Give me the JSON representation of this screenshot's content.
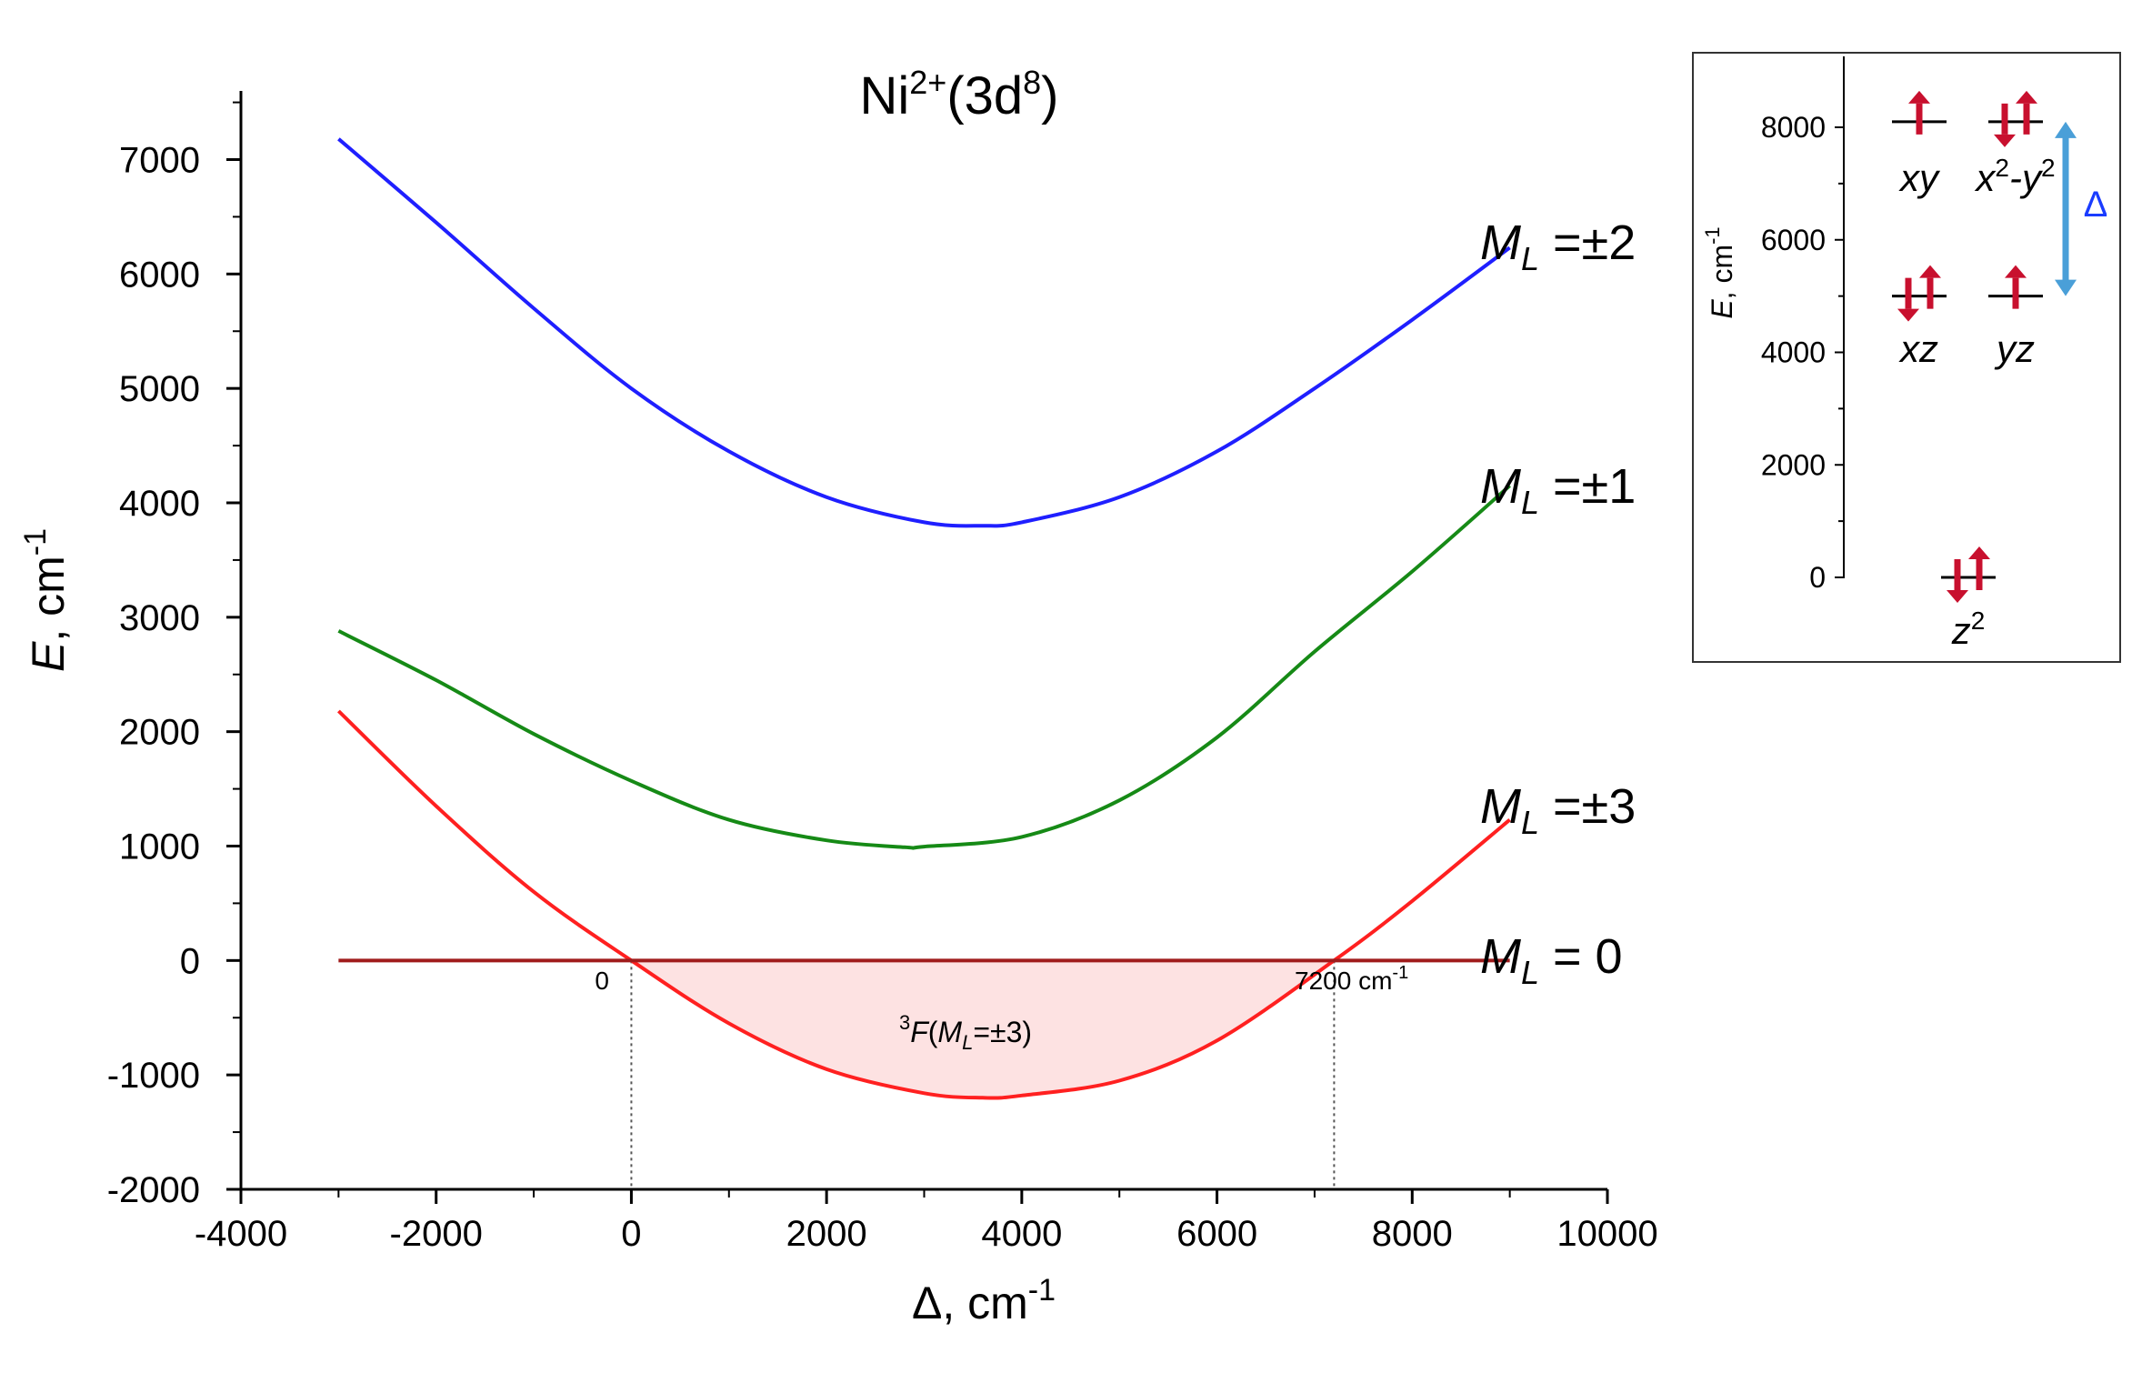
{
  "chart_data": {
    "type": "line",
    "title": "Ni2+(3d8)",
    "title_parts": {
      "base": "Ni",
      "charge": "2+",
      "config_open": "(3d",
      "config_power": "8",
      "config_close": ")"
    },
    "xlabel": "Δ, cm-1",
    "xlabel_parts": {
      "base": "Δ, cm",
      "power": "-1"
    },
    "ylabel": "E, cm-1",
    "ylabel_parts": {
      "italic": "E",
      "base": ", cm",
      "power": "-1"
    },
    "xlim": [
      -4000,
      10000
    ],
    "ylim": [
      -2000,
      7600
    ],
    "xticks": [
      -4000,
      -2000,
      0,
      2000,
      4000,
      6000,
      8000,
      10000
    ],
    "yticks": [
      -2000,
      -1000,
      0,
      1000,
      2000,
      3000,
      4000,
      5000,
      6000,
      7000
    ],
    "xtick_labels": [
      "-4000",
      "-2000",
      "0",
      "2000",
      "4000",
      "6000",
      "8000",
      "10000"
    ],
    "ytick_labels": [
      "-2000",
      "-1000",
      "0",
      "1000",
      "2000",
      "3000",
      "4000",
      "5000",
      "6000",
      "7000"
    ],
    "series": [
      {
        "name": "ML =±2",
        "label_sym": "M",
        "label_sub": "L",
        "label_rest": " =±2",
        "color": "#1f1fff",
        "x": [
          -3000,
          -2000,
          -1000,
          0,
          1000,
          2000,
          3000,
          3600,
          4000,
          5000,
          6000,
          7000,
          8000,
          9000
        ],
        "y": [
          7180,
          6450,
          5700,
          5000,
          4450,
          4050,
          3830,
          3800,
          3830,
          4050,
          4450,
          5000,
          5600,
          6230
        ]
      },
      {
        "name": "ML =±1",
        "label_sym": "M",
        "label_sub": "L",
        "label_rest": " =±1",
        "color": "#168a16",
        "x": [
          -3000,
          -2000,
          -1000,
          0,
          1000,
          2000,
          2800,
          3000,
          4000,
          5000,
          6000,
          7000,
          8000,
          9000
        ],
        "y": [
          2880,
          2450,
          1980,
          1570,
          1230,
          1050,
          990,
          995,
          1080,
          1400,
          1950,
          2700,
          3400,
          4150
        ]
      },
      {
        "name": "ML =±3",
        "label_sym": "M",
        "label_sub": "L",
        "label_rest": " =±3",
        "color": "#ff2020",
        "x": [
          -3000,
          -2000,
          -1000,
          0,
          1000,
          2000,
          3000,
          3600,
          4000,
          5000,
          6000,
          7200,
          8000,
          9000
        ],
        "y": [
          2180,
          1350,
          600,
          0,
          -550,
          -950,
          -1160,
          -1200,
          -1180,
          -1050,
          -700,
          0,
          520,
          1230
        ]
      },
      {
        "name": "ML = 0",
        "label_sym": "M",
        "label_sub": "L",
        "label_rest": " = 0",
        "color": "#a01c1c",
        "x": [
          -3000,
          9000
        ],
        "y": [
          0,
          0
        ]
      }
    ],
    "shaded_region": {
      "label_pre": "3",
      "label_sym": "F",
      "label_open": "(",
      "label_M": "M",
      "label_sub": "L",
      "label_rest": "=±3)",
      "x_from": 0,
      "x_to": 7200,
      "color": "#fde2e2"
    },
    "annotations": {
      "left_crossing": "0",
      "right_crossing": "7200 cm",
      "right_crossing_power": "-1"
    },
    "inset": {
      "ylabel_italic": "E",
      "ylabel_base": ", cm",
      "ylabel_power": "-1",
      "ylim": [
        0,
        9000
      ],
      "yticks": [
        0,
        2000,
        4000,
        6000,
        8000
      ],
      "ytick_labels": [
        "0",
        "2000",
        "4000",
        "6000",
        "8000"
      ],
      "orbitals": [
        {
          "name": "xy",
          "energy": 8100,
          "electrons": "up"
        },
        {
          "name": "x2-y2",
          "energy": 8100,
          "electrons": "pair"
        },
        {
          "name": "xz",
          "energy": 5000,
          "electrons": "pair"
        },
        {
          "name": "yz",
          "energy": 5000,
          "electrons": "up"
        },
        {
          "name": "z2",
          "energy": 0,
          "electrons": "pair"
        }
      ],
      "delta_label": "Δ",
      "arrow_color": "#c8102e",
      "delta_arrow_color": "#4a9fd8"
    }
  }
}
